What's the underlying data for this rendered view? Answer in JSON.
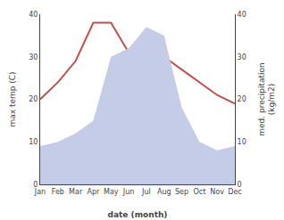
{
  "chart_data": {
    "type": "line",
    "xlabel": "date (month)",
    "ylabel": "max temp (C)",
    "y2label": "med. precipitation\n(kg/m2)",
    "categories": [
      "Jan",
      "Feb",
      "Mar",
      "Apr",
      "May",
      "Jun",
      "Jul",
      "Aug",
      "Sep",
      "Oct",
      "Nov",
      "Dec"
    ],
    "series": [
      {
        "type": "area",
        "axis": "y2",
        "color": "#c5cce8",
        "values": [
          9,
          10,
          12,
          15,
          30,
          32,
          37,
          35,
          18,
          10,
          8,
          9
        ]
      },
      {
        "type": "line",
        "color": "#c0504d",
        "values": [
          20,
          24,
          29,
          38,
          38,
          31,
          29,
          30,
          27,
          24,
          21,
          19
        ]
      }
    ],
    "ylim": [
      0,
      40
    ],
    "yticks": [
      0,
      10,
      20,
      30,
      40
    ],
    "y2lim": [
      0,
      40
    ],
    "y2ticks": [
      0,
      10,
      20,
      30,
      40
    ],
    "grid": false
  }
}
